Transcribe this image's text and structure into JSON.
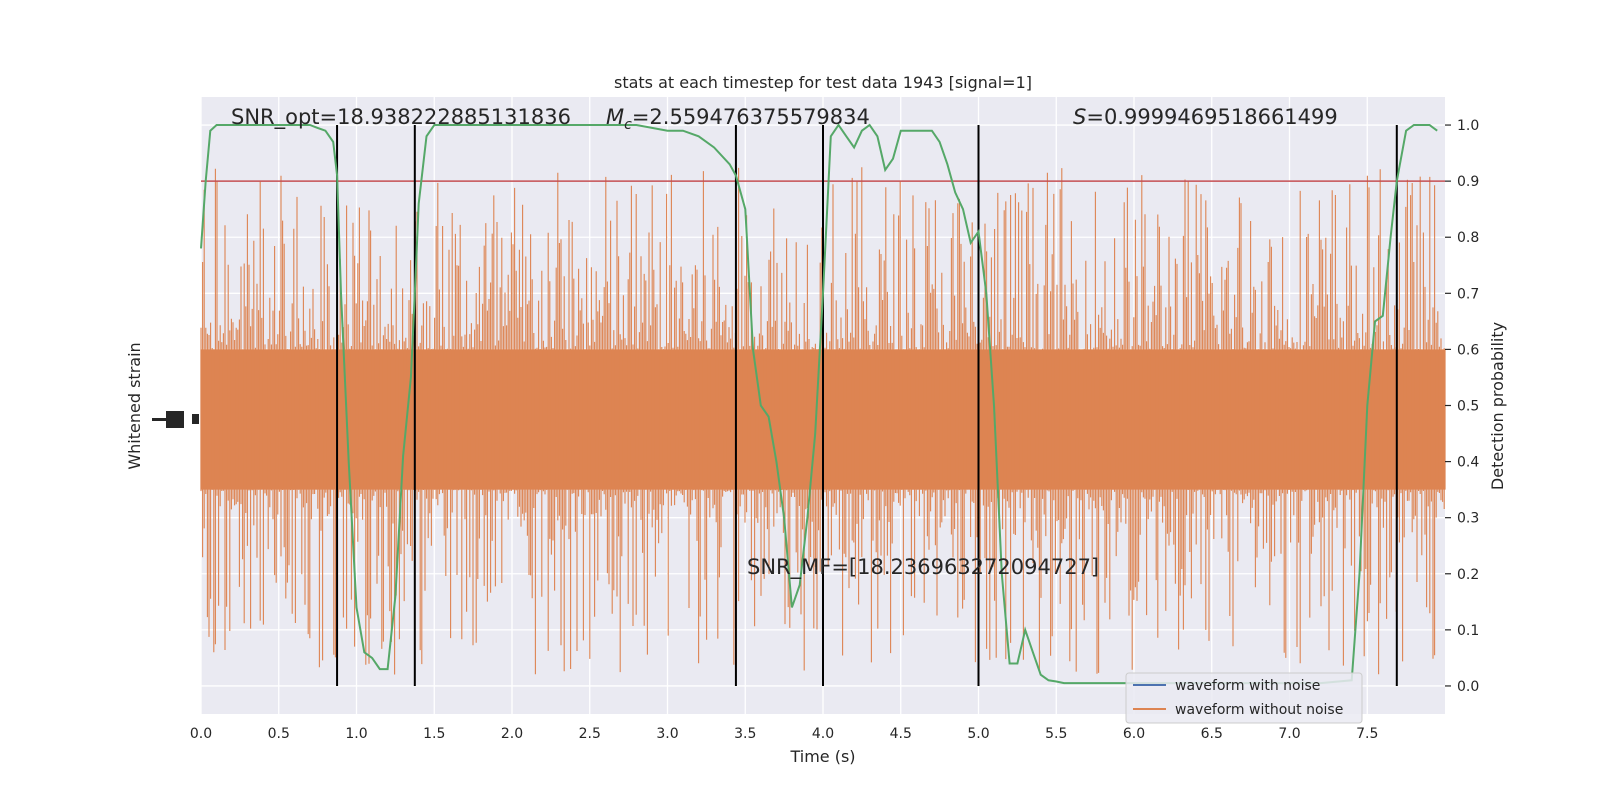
{
  "chart_data": {
    "type": "line",
    "title": "stats at each timestep for test data 1943 [signal=1]",
    "xlabel": "Time (s)",
    "ylabel_left": "Whitened strain",
    "ylabel_right": "Detection probability",
    "xlim": [
      0.0,
      8.0
    ],
    "xticks": [
      "0.0",
      "0.5",
      "1.0",
      "1.5",
      "2.0",
      "2.5",
      "3.0",
      "3.5",
      "4.0",
      "4.5",
      "5.0",
      "5.5",
      "6.0",
      "6.5",
      "7.0",
      "7.5"
    ],
    "xtick_values": [
      0.0,
      0.5,
      1.0,
      1.5,
      2.0,
      2.5,
      3.0,
      3.5,
      4.0,
      4.5,
      5.0,
      5.5,
      6.0,
      6.5,
      7.0,
      7.5
    ],
    "right_ylim": [
      -0.05,
      1.05
    ],
    "right_yticks": [
      "0.0",
      "0.1",
      "0.2",
      "0.3",
      "0.4",
      "0.5",
      "0.6",
      "0.7",
      "0.8",
      "0.9",
      "1.0"
    ],
    "right_ytick_values": [
      0.0,
      0.1,
      0.2,
      0.3,
      0.4,
      0.5,
      0.6,
      0.7,
      0.8,
      0.9,
      1.0
    ],
    "grid": true,
    "background_color": "#eaeaf2",
    "annotations": {
      "snr_opt": "SNR_opt=18.938222885131836",
      "mc_symbol": "M",
      "mc_sub": "c",
      "mc_value": "=2.559476375579834",
      "s_symbol": "S",
      "s_value": "=0.9999469518661499",
      "snr_mf": "SNR_MF=[18.236963272094727]"
    },
    "threshold": {
      "value": 0.9,
      "color": "#c44e52"
    },
    "vertical_lines": [
      0.875,
      1.375,
      3.44,
      4.0,
      5.0,
      7.69
    ],
    "vertical_line_color": "#000000",
    "series": [
      {
        "name": "waveform with noise",
        "color": "#4c72b0",
        "axis": "left",
        "note": "hidden behind noise-free waveform"
      },
      {
        "name": "waveform without noise",
        "color": "#dd8452",
        "axis": "left",
        "center": 0.475,
        "band_halfwidth": 0.125,
        "outer_range": [
          0.02,
          0.93
        ]
      },
      {
        "color": "#55a868",
        "axis": "right",
        "x": [
          0.0,
          0.03,
          0.06,
          0.1,
          0.15,
          0.2,
          0.3,
          0.4,
          0.5,
          0.6,
          0.7,
          0.75,
          0.8,
          0.85,
          0.875,
          0.9,
          0.95,
          1.0,
          1.05,
          1.1,
          1.15,
          1.2,
          1.25,
          1.3,
          1.35,
          1.375,
          1.4,
          1.45,
          1.5,
          1.6,
          1.8,
          2.0,
          2.2,
          2.4,
          2.6,
          2.8,
          3.0,
          3.1,
          3.2,
          3.3,
          3.4,
          3.44,
          3.5,
          3.55,
          3.6,
          3.65,
          3.7,
          3.75,
          3.8,
          3.85,
          3.9,
          3.95,
          4.0,
          4.05,
          4.1,
          4.15,
          4.2,
          4.25,
          4.3,
          4.35,
          4.4,
          4.45,
          4.5,
          4.55,
          4.6,
          4.65,
          4.7,
          4.75,
          4.8,
          4.85,
          4.9,
          4.95,
          5.0,
          5.05,
          5.1,
          5.15,
          5.2,
          5.25,
          5.3,
          5.35,
          5.4,
          5.45,
          5.5,
          5.55,
          5.6,
          5.65,
          5.7,
          5.8,
          6.0,
          6.3,
          6.6,
          6.9,
          7.2,
          7.4,
          7.45,
          7.5,
          7.55,
          7.6,
          7.65,
          7.69,
          7.75,
          7.8,
          7.85,
          7.9,
          7.95
        ],
        "y": [
          0.78,
          0.9,
          0.99,
          1.0,
          1.0,
          1.0,
          1.0,
          1.0,
          1.0,
          1.0,
          1.0,
          0.995,
          0.99,
          0.97,
          0.91,
          0.7,
          0.4,
          0.14,
          0.06,
          0.05,
          0.03,
          0.03,
          0.16,
          0.41,
          0.55,
          0.7,
          0.86,
          0.98,
          1.0,
          1.0,
          1.0,
          1.0,
          1.0,
          1.0,
          1.0,
          1.0,
          0.99,
          0.99,
          0.98,
          0.96,
          0.93,
          0.91,
          0.85,
          0.6,
          0.5,
          0.48,
          0.4,
          0.3,
          0.14,
          0.18,
          0.3,
          0.45,
          0.7,
          0.98,
          1.0,
          0.98,
          0.96,
          0.99,
          1.0,
          0.98,
          0.92,
          0.94,
          0.99,
          0.99,
          0.99,
          0.99,
          0.99,
          0.97,
          0.93,
          0.88,
          0.85,
          0.79,
          0.81,
          0.7,
          0.5,
          0.2,
          0.04,
          0.04,
          0.1,
          0.06,
          0.02,
          0.01,
          0.008,
          0.005,
          0.005,
          0.005,
          0.005,
          0.005,
          0.005,
          0.005,
          0.005,
          0.005,
          0.005,
          0.01,
          0.2,
          0.5,
          0.65,
          0.66,
          0.8,
          0.9,
          0.99,
          1.0,
          1.0,
          1.0,
          0.99
        ]
      }
    ],
    "legend": {
      "placement": "lower-right",
      "entries": [
        "waveform with noise",
        "waveform without noise"
      ]
    }
  }
}
